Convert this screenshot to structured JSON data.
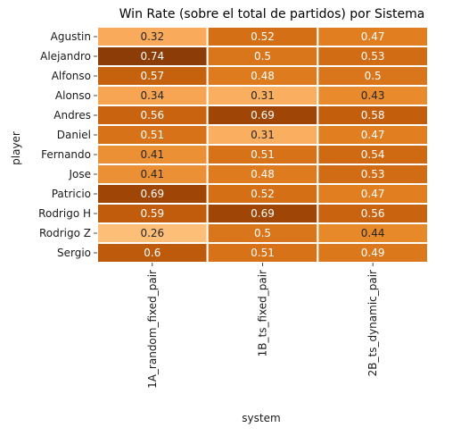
{
  "chart_data": {
    "type": "heatmap",
    "title": "Win Rate (sobre el total de partidos) por Sistema",
    "xlabel": "system",
    "ylabel": "player",
    "x_categories": [
      "1A_random_fixed_pair",
      "1B_ts_fixed_pair",
      "2B_ts_dynamic_pair"
    ],
    "y_categories": [
      "Agustin",
      "Alejandro",
      "Alfonso",
      "Alonso",
      "Andres",
      "Daniel",
      "Fernando",
      "Jose",
      "Patricio",
      "Rodrigo H",
      "Rodrigo Z",
      "Sergio"
    ],
    "values": [
      [
        0.32,
        0.52,
        0.47
      ],
      [
        0.74,
        0.5,
        0.53
      ],
      [
        0.57,
        0.48,
        0.5
      ],
      [
        0.34,
        0.31,
        0.43
      ],
      [
        0.56,
        0.69,
        0.58
      ],
      [
        0.51,
        0.31,
        0.47
      ],
      [
        0.41,
        0.51,
        0.54
      ],
      [
        0.41,
        0.48,
        0.53
      ],
      [
        0.69,
        0.52,
        0.47
      ],
      [
        0.59,
        0.69,
        0.56
      ],
      [
        0.26,
        0.5,
        0.44
      ],
      [
        0.6,
        0.51,
        0.49
      ]
    ],
    "value_range": [
      0.26,
      0.74
    ],
    "colormap": [
      "#fdbe78",
      "#f6a04a",
      "#e58424",
      "#cd6610",
      "#b04f07",
      "#8c3c06"
    ],
    "colorbar": false,
    "grid": false,
    "cell_border_color": "#ffffff"
  }
}
